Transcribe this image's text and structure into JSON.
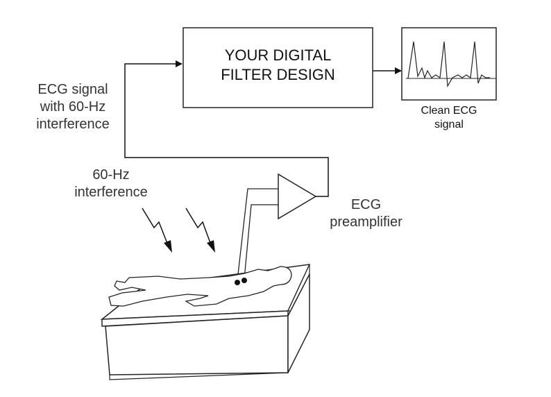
{
  "filter_block": {
    "line1": "YOUR  DIGITAL",
    "line2": "FILTER DESIGN"
  },
  "output": {
    "line1": "Clean ECG",
    "line2": "signal"
  },
  "input_signal": {
    "line1": "ECG signal",
    "line2": "with 60-Hz",
    "line3": "interference"
  },
  "interference": {
    "line1": "60-Hz",
    "line2": "interference"
  },
  "preamp": {
    "line1": "ECG",
    "line2": "preamplifier"
  }
}
